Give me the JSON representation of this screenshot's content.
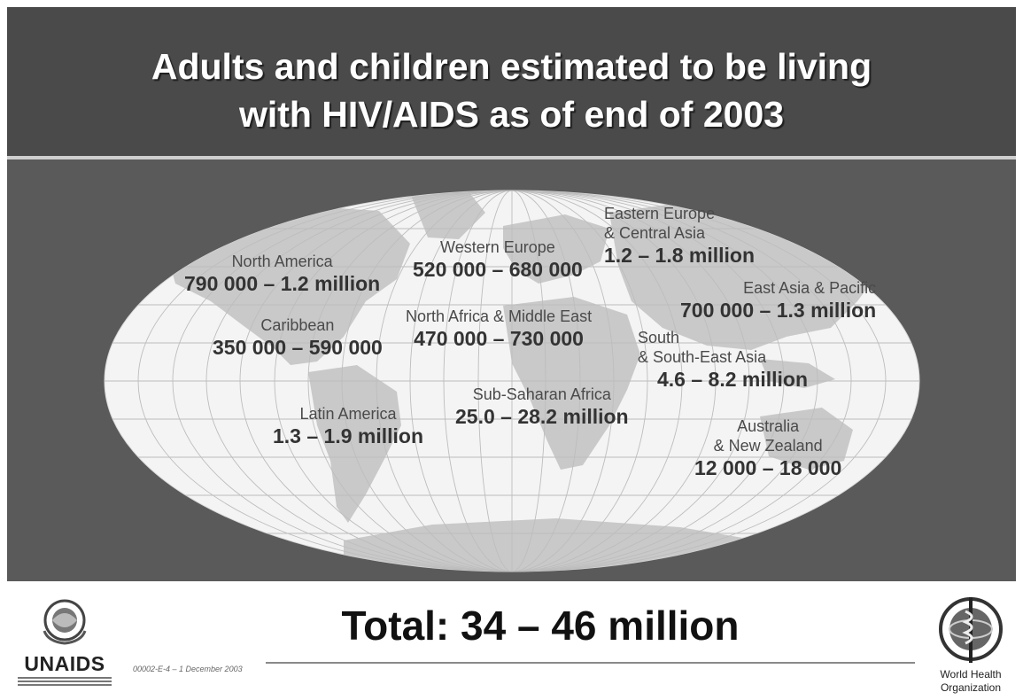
{
  "title": {
    "line1": "Adults and children estimated to be living",
    "line2": "with HIV/AIDS as of end of 2003"
  },
  "regions": {
    "north_america": {
      "name": "North America",
      "value": "790 000 – 1.2 million"
    },
    "caribbean": {
      "name": "Caribbean",
      "value": "350 000 – 590 000"
    },
    "latin_america": {
      "name": "Latin America",
      "value": "1.3 – 1.9 million"
    },
    "western_europe": {
      "name": "Western Europe",
      "value": "520 000 – 680 000"
    },
    "north_africa_middle_east": {
      "name": "North Africa & Middle East",
      "value": "470 000 – 730 000"
    },
    "sub_saharan_africa": {
      "name": "Sub-Saharan Africa",
      "value": "25.0 – 28.2 million"
    },
    "eastern_europe_central_asia": {
      "name_line1": "Eastern Europe",
      "name_line2": "& Central Asia",
      "value": "1.2 – 1.8 million"
    },
    "east_asia_pacific": {
      "name": "East Asia & Pacific",
      "value": "700 000 – 1.3 million"
    },
    "south_southeast_asia": {
      "name_line1": "South",
      "name_line2": "& South-East Asia",
      "value": "4.6 – 8.2 million"
    },
    "australia_new_zealand": {
      "name_line1": "Australia",
      "name_line2": "& New Zealand",
      "value": "12 000 – 18 000"
    }
  },
  "total": "Total: 34 – 46 million",
  "slide_code": "00002-E-4 – 1 December 2003",
  "logos": {
    "left": "UNAIDS",
    "right_line1": "World Health",
    "right_line2": "Organization"
  },
  "colors": {
    "header_bg": "#4a4a4a",
    "map_panel_bg": "#5a5a5a",
    "map_ellipse": "#f4f4f4",
    "land": "#c9c9c9"
  }
}
